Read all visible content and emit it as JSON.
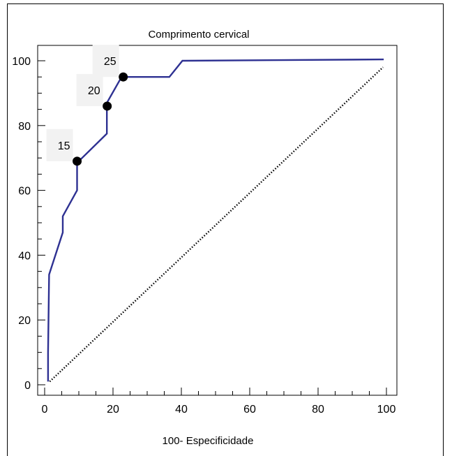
{
  "chart_data": {
    "type": "line",
    "title": "Comprimento cervical",
    "xlabel": "100- Especificidade",
    "ylabel": "",
    "xlim": [
      0,
      100
    ],
    "ylim": [
      0,
      100
    ],
    "x_ticks": [
      "0",
      "20",
      "40",
      "60",
      "80",
      "100"
    ],
    "y_ticks": [
      "0",
      "20",
      "40",
      "60",
      "80",
      "100"
    ],
    "series": [
      {
        "color": "#2e3192",
        "style": "solid",
        "x": [
          1,
          1,
          1.3,
          5.3,
          5.3,
          9.5,
          9.5,
          18.2,
          18.2,
          22.5,
          36.5,
          40.3,
          99.2
        ],
        "y": [
          1,
          10,
          34,
          47,
          52,
          60,
          68.5,
          77.5,
          87,
          95,
          95,
          100,
          100.4
        ]
      },
      {
        "color": "#000000",
        "style": "dotted",
        "x": [
          1.5,
          99
        ],
        "y": [
          1,
          98
        ]
      }
    ],
    "points": [
      {
        "label": "15",
        "x": 9.5,
        "y": 69
      },
      {
        "label": "20",
        "x": 18.3,
        "y": 86
      },
      {
        "label": "25",
        "x": 23,
        "y": 95
      }
    ],
    "grid": false
  }
}
